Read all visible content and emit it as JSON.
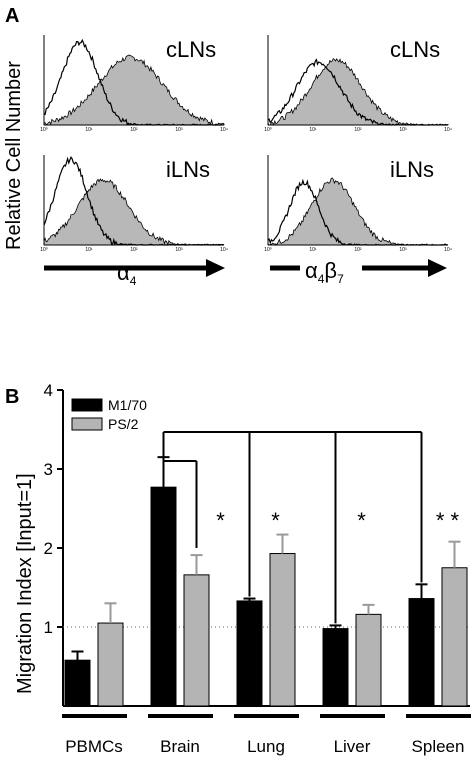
{
  "panel_a": {
    "letter": "A",
    "ylabel": "Relative Cell Number",
    "plots": [
      {
        "label": "cLNs"
      },
      {
        "label": "cLNs"
      },
      {
        "label": "iLNs"
      },
      {
        "label": "iLNs"
      }
    ],
    "tick_labels": [
      "10⁰",
      "10¹",
      "10²",
      "10³",
      "10⁴"
    ],
    "axis_labels": [
      {
        "base": "α",
        "sub": "4",
        "base2": "",
        "sub2": ""
      },
      {
        "base": "α",
        "sub": "4",
        "base2": "β",
        "sub2": "7"
      }
    ]
  },
  "panel_b": {
    "letter": "B",
    "chart_data": {
      "type": "bar",
      "categories": [
        "PBMCs",
        "Brain",
        "Lung",
        "Liver",
        "Spleen"
      ],
      "series": [
        {
          "name": "M1/70",
          "color": "#000000",
          "values": [
            0.58,
            2.77,
            1.33,
            0.98,
            1.36
          ],
          "errors": [
            0.11,
            0.38,
            0.03,
            0.04,
            0.18
          ]
        },
        {
          "name": "PS/2",
          "color": "#b4b4b4",
          "values": [
            1.05,
            1.66,
            1.93,
            1.16,
            1.75
          ],
          "errors": [
            0.25,
            0.25,
            0.24,
            0.12,
            0.33
          ]
        }
      ],
      "ylabel": "Migration Index [Input=1]",
      "ylim": [
        0,
        4
      ],
      "yticks": [
        1,
        2,
        3,
        4
      ],
      "reference_line": 1,
      "legend_position": "top-left",
      "significance": [
        "*",
        "*",
        "*",
        "* *"
      ]
    }
  }
}
